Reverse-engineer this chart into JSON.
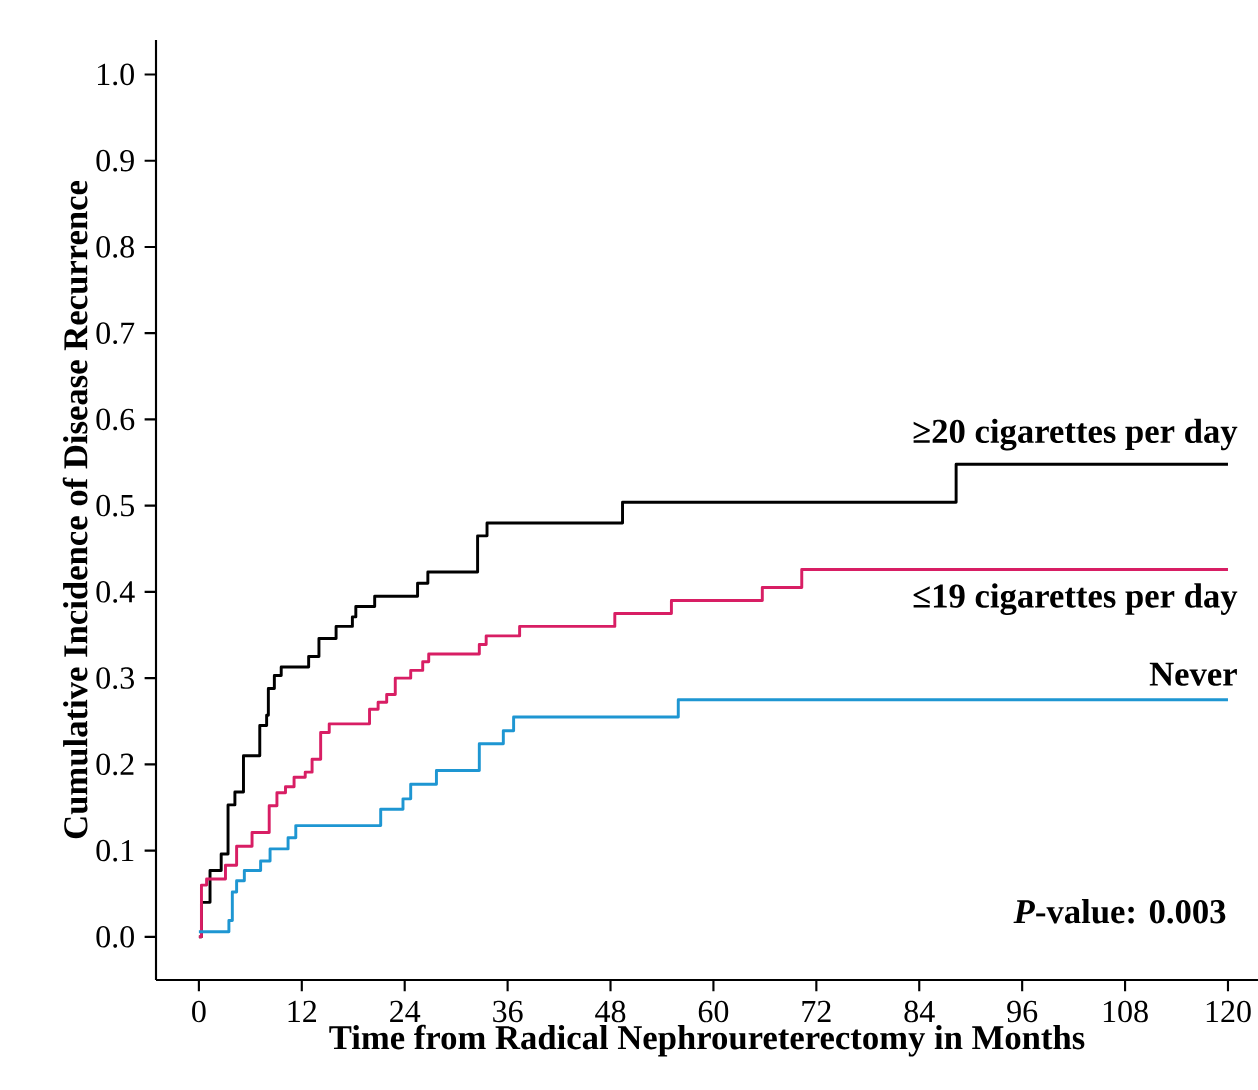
{
  "chart_data": {
    "type": "step",
    "xlabel": "Time from Radical Nephroureterectomy in Months",
    "ylabel": "Cumulative Incidence of Disease Recurrence",
    "xlim": [
      -5,
      123.5
    ],
    "ylim": [
      -0.05,
      1.04
    ],
    "xticks": [
      0,
      12,
      24,
      36,
      48,
      60,
      72,
      84,
      96,
      108,
      120
    ],
    "yticks": [
      {
        "value": 0,
        "label": "0.0"
      },
      {
        "value": 0.1,
        "label": "0.1"
      },
      {
        "value": 0.2,
        "label": "0.2"
      },
      {
        "value": 0.3,
        "label": "0.3"
      },
      {
        "value": 0.4,
        "label": "0.4"
      },
      {
        "value": 0.5,
        "label": "0.5"
      },
      {
        "value": 0.6,
        "label": "0.6"
      },
      {
        "value": 0.7,
        "label": "0.7"
      },
      {
        "value": 0.8,
        "label": "0.8"
      },
      {
        "value": 0.9,
        "label": "0.9"
      },
      {
        "value": 1.0,
        "label": "1.0"
      }
    ],
    "grid": false,
    "legend": false,
    "marker": "none",
    "line_style": "solid",
    "series": [
      {
        "name": "≥20 cigarettes per day",
        "color": "#000000",
        "x": [
          0,
          0.3,
          1.3,
          2.6,
          3.4,
          4.2,
          5.2,
          7.1,
          7.9,
          8.1,
          8.8,
          9.6,
          12.8,
          14.0,
          16.0,
          17.9,
          18.3,
          20.5,
          25.5,
          26.7,
          32.5,
          33.6,
          49.4,
          88.3,
          120
        ],
        "values": [
          0,
          0.04,
          0.077,
          0.096,
          0.153,
          0.168,
          0.21,
          0.245,
          0.257,
          0.288,
          0.303,
          0.313,
          0.325,
          0.346,
          0.36,
          0.371,
          0.383,
          0.395,
          0.41,
          0.423,
          0.465,
          0.48,
          0.504,
          0.548,
          0.548
        ]
      },
      {
        "name": "≤19 cigarettes per day",
        "color": "#d81e64",
        "x": [
          0,
          0.3,
          0.9,
          3.1,
          4.4,
          6.2,
          8.2,
          9.1,
          10.1,
          11.1,
          12.4,
          13.2,
          14.2,
          15.2,
          19.9,
          20.9,
          21.9,
          22.9,
          24.7,
          26.1,
          26.8,
          32.7,
          33.5,
          37.4,
          48.5,
          55.1,
          65.7,
          70.3,
          120
        ],
        "values": [
          0,
          0.06,
          0.067,
          0.083,
          0.105,
          0.121,
          0.152,
          0.167,
          0.174,
          0.185,
          0.191,
          0.206,
          0.237,
          0.247,
          0.264,
          0.272,
          0.281,
          0.3,
          0.309,
          0.319,
          0.328,
          0.339,
          0.349,
          0.36,
          0.375,
          0.39,
          0.405,
          0.426,
          0.426
        ]
      },
      {
        "name": "Never",
        "color": "#1e96d2",
        "x": [
          0,
          3.5,
          3.9,
          4.4,
          5.3,
          7.2,
          8.3,
          10.4,
          11.3,
          21.2,
          23.8,
          24.7,
          27.7,
          32.7,
          35.5,
          36.7,
          55.9,
          120
        ],
        "values": [
          0.006,
          0.019,
          0.052,
          0.065,
          0.077,
          0.088,
          0.102,
          0.115,
          0.129,
          0.148,
          0.16,
          0.177,
          0.193,
          0.224,
          0.239,
          0.255,
          0.275,
          0.275
        ]
      }
    ],
    "annotations": [
      "*P*-value: 0.003"
    ]
  }
}
